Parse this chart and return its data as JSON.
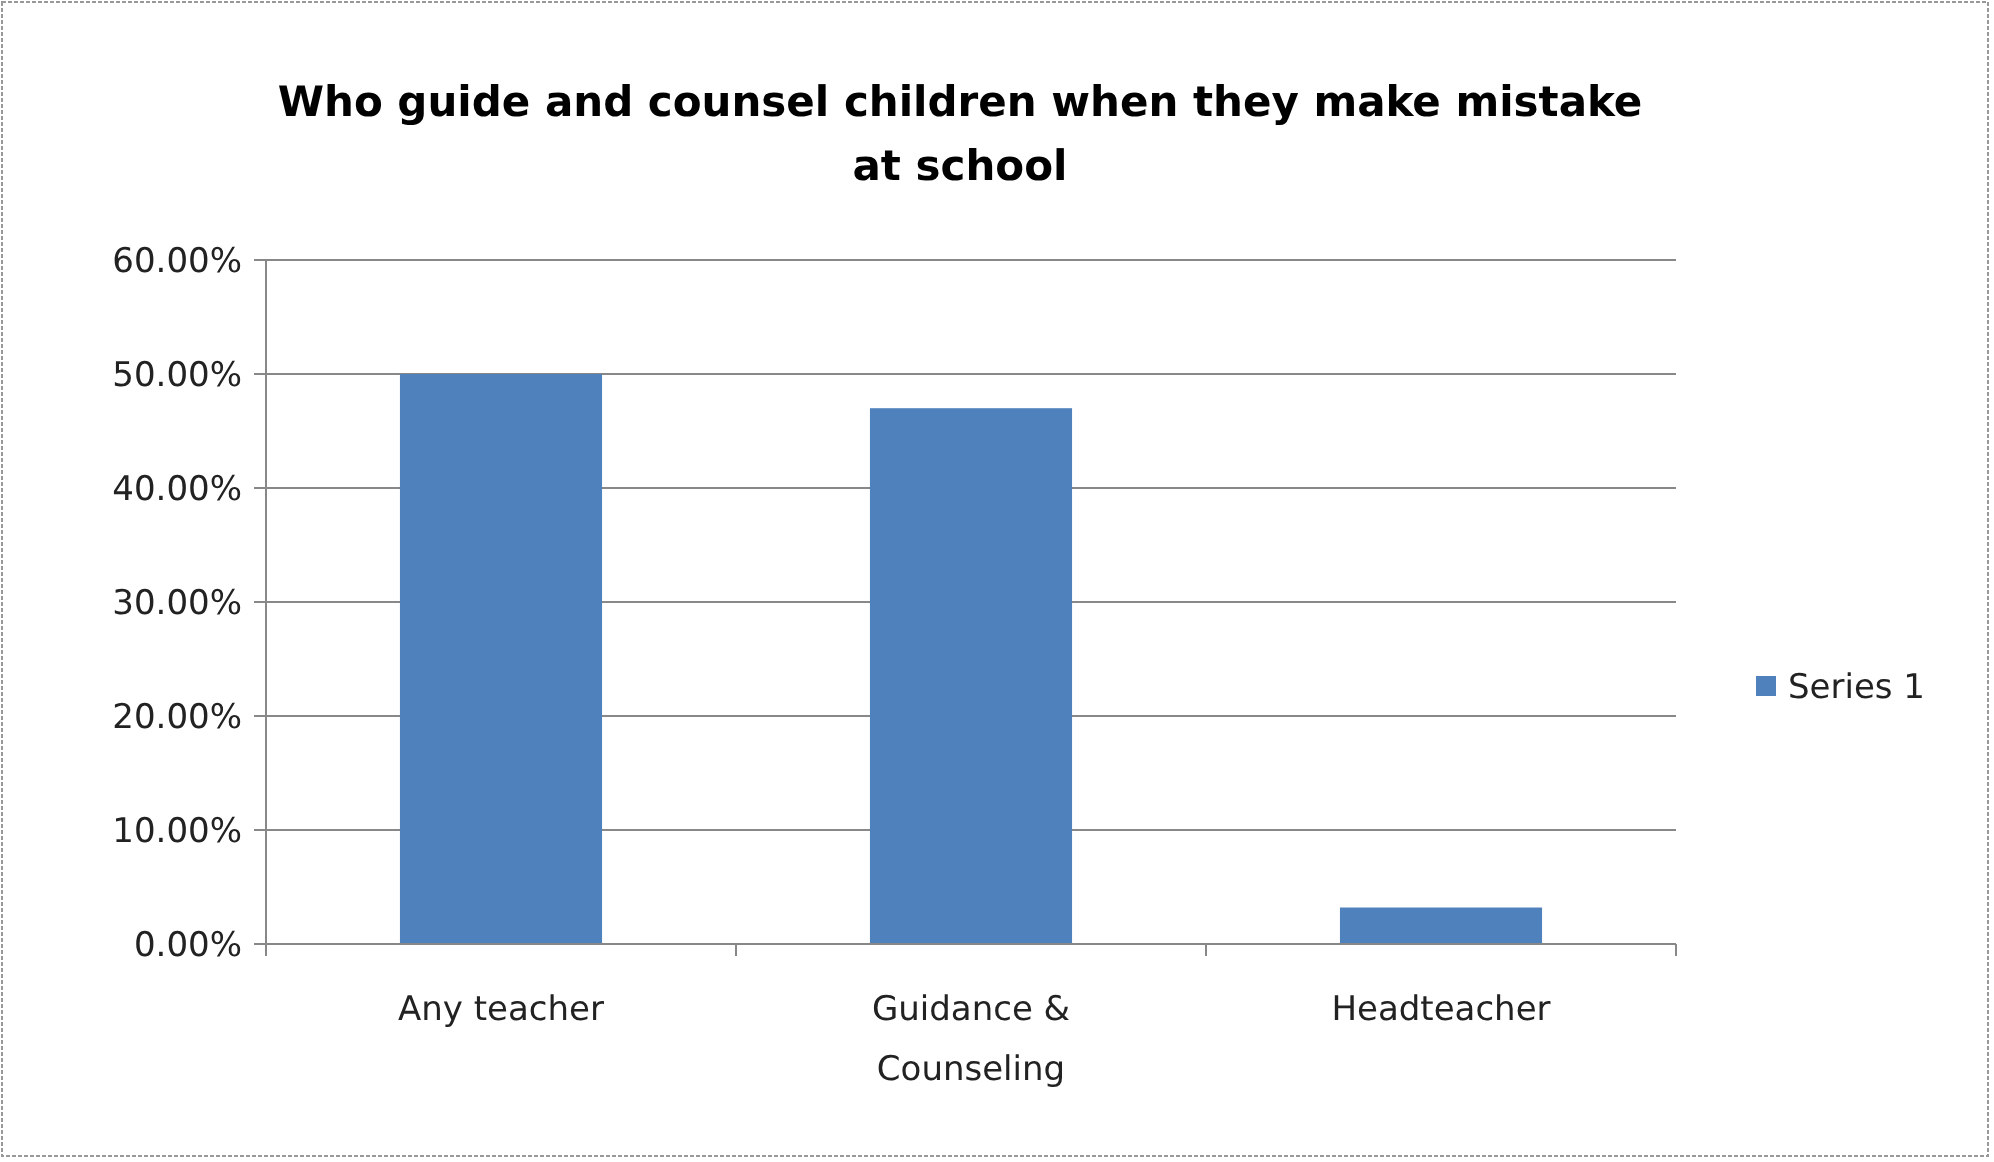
{
  "chart_data": {
    "type": "bar",
    "title": "Who guide and counsel children when they make mistake at school",
    "categories": [
      "Any teacher",
      "Guidance & Counseling",
      "Headteacher"
    ],
    "series": [
      {
        "name": "Series 1",
        "color": "#4f81bd",
        "values": [
          50,
          47,
          3.2
        ]
      }
    ],
    "ylim": [
      0,
      60
    ],
    "yticks": [
      {
        "value": 0,
        "label": "0.00%"
      },
      {
        "value": 10,
        "label": "10.00%"
      },
      {
        "value": 20,
        "label": "20.00%"
      },
      {
        "value": 30,
        "label": "30.00%"
      },
      {
        "value": 40,
        "label": "40.00%"
      },
      {
        "value": 50,
        "label": "50.00%"
      },
      {
        "value": 60,
        "label": "60.00%"
      }
    ],
    "grid": "y",
    "legend": "right"
  }
}
